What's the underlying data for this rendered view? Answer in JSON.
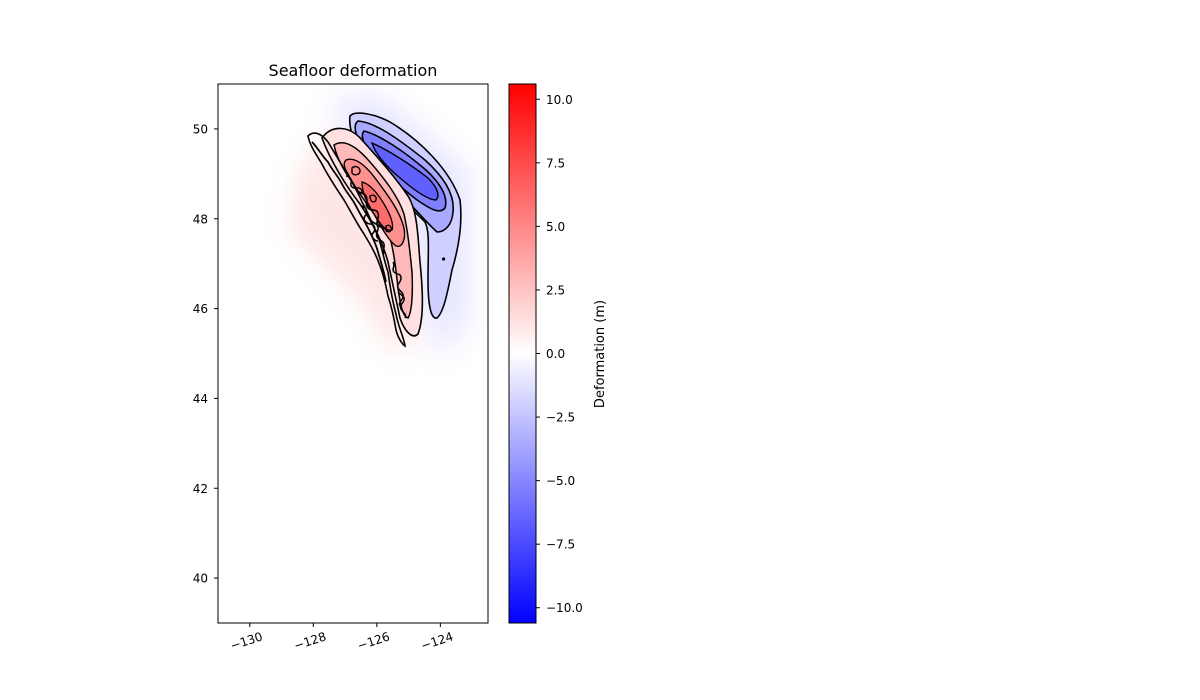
{
  "chart_data": {
    "type": "heatmap",
    "title": "Seafloor deformation",
    "xlabel": "",
    "ylabel": "",
    "x_ticks": [
      -130,
      -128,
      -126,
      -124
    ],
    "y_ticks": [
      40,
      42,
      44,
      46,
      48,
      50
    ],
    "xlim": [
      -131,
      -122.5
    ],
    "ylim": [
      39,
      51
    ],
    "grid": false,
    "colorbar": {
      "label": "Deformation (m)",
      "colormap": "bwr",
      "range": [
        -10.6,
        10.6
      ],
      "ticks": [
        -10.0,
        -7.5,
        -5.0,
        -2.5,
        0.0,
        2.5,
        5.0,
        7.5,
        10.0
      ],
      "tick_labels": [
        "−10.0",
        "−7.5",
        "−5.0",
        "−2.5",
        "0.0",
        "2.5",
        "5.0",
        "7.5",
        "10.0"
      ],
      "colors": {
        "low": "#0000ff",
        "mid": "#ffffff",
        "high": "#ff0000"
      }
    },
    "field": {
      "uplift_band": {
        "sign": "positive",
        "peak_m": 5.5,
        "ridge": [
          [
            -127.9,
            49.8
          ],
          [
            -127.0,
            49.2
          ],
          [
            -126.2,
            48.2
          ],
          [
            -125.6,
            47.0
          ],
          [
            -125.3,
            45.6
          ]
        ]
      },
      "subsidence_band": {
        "sign": "negative",
        "peak_m": -6.0,
        "ridge": [
          [
            -126.5,
            50.1
          ],
          [
            -125.5,
            49.3
          ],
          [
            -124.4,
            48.3
          ],
          [
            -124.0,
            47.2
          ],
          [
            -124.2,
            46.0
          ]
        ]
      }
    }
  }
}
